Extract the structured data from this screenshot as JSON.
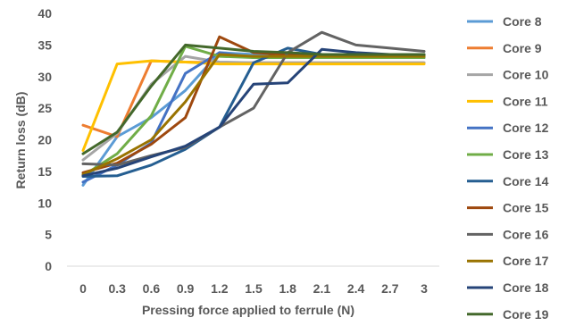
{
  "chart_data": {
    "type": "line",
    "title": "",
    "xlabel": "Pressing force applied to ferrule (N)",
    "ylabel": "Return loss (dB)",
    "x": [
      "0",
      "0.3",
      "0.6",
      "0.9",
      "1.2",
      "1.5",
      "1.8",
      "2.1",
      "2.4",
      "2.7",
      "3"
    ],
    "ylim": [
      0,
      40
    ],
    "yticks": [
      "0",
      "5",
      "10",
      "15",
      "20",
      "25",
      "30",
      "35",
      "40"
    ],
    "grid": false,
    "legend_position": "right",
    "series": [
      {
        "name": "Core 8",
        "color": "#5B9BD5",
        "values": [
          12.8,
          20.5,
          23.5,
          27.8,
          33.8,
          33.5,
          33.3,
          33.0,
          33.0,
          33.0,
          33.0
        ]
      },
      {
        "name": "Core 9",
        "color": "#ED7D31",
        "values": [
          22.3,
          20.5,
          32.5,
          32.3,
          32.2,
          32.2,
          32.2,
          32.2,
          32.2,
          32.2,
          32.2
        ]
      },
      {
        "name": "Core 10",
        "color": "#A5A5A5",
        "values": [
          16.8,
          21.0,
          28.8,
          33.2,
          32.3,
          32.2,
          32.2,
          32.2,
          32.2,
          32.2,
          32.2
        ]
      },
      {
        "name": "Core 11",
        "color": "#FFC000",
        "values": [
          18.3,
          32.0,
          32.5,
          32.3,
          32.0,
          32.0,
          32.0,
          32.0,
          32.0,
          32.0,
          32.0
        ]
      },
      {
        "name": "Core 12",
        "color": "#4472C4",
        "values": [
          13.3,
          16.0,
          19.5,
          30.5,
          33.8,
          33.0,
          33.0,
          33.0,
          33.0,
          33.0,
          33.0
        ]
      },
      {
        "name": "Core 13",
        "color": "#70AD47",
        "values": [
          14.3,
          17.8,
          23.8,
          34.8,
          33.2,
          33.0,
          33.0,
          33.0,
          33.0,
          33.0,
          33.0
        ]
      },
      {
        "name": "Core 14",
        "color": "#255E91",
        "values": [
          14.2,
          14.3,
          16.0,
          18.5,
          22.0,
          32.2,
          34.5,
          33.5,
          33.3,
          33.3,
          33.3
        ]
      },
      {
        "name": "Core 15",
        "color": "#9E480E",
        "values": [
          14.8,
          16.3,
          19.3,
          23.5,
          36.3,
          33.8,
          33.5,
          33.3,
          33.3,
          33.3,
          33.3
        ]
      },
      {
        "name": "Core 16",
        "color": "#636363",
        "values": [
          16.2,
          16.0,
          17.5,
          18.8,
          22.0,
          25.0,
          33.8,
          37.0,
          35.0,
          34.5,
          34.0
        ]
      },
      {
        "name": "Core 17",
        "color": "#997300",
        "values": [
          14.5,
          17.0,
          20.0,
          26.0,
          33.5,
          33.2,
          33.2,
          33.2,
          33.2,
          33.2,
          33.2
        ]
      },
      {
        "name": "Core 18",
        "color": "#264478",
        "values": [
          14.3,
          15.5,
          17.3,
          19.0,
          22.0,
          28.8,
          29.0,
          34.3,
          33.8,
          33.5,
          33.5
        ]
      },
      {
        "name": "Core 19",
        "color": "#43682B",
        "values": [
          17.8,
          21.2,
          28.5,
          35.0,
          34.5,
          34.0,
          33.8,
          33.5,
          33.5,
          33.5,
          33.5
        ]
      }
    ]
  }
}
